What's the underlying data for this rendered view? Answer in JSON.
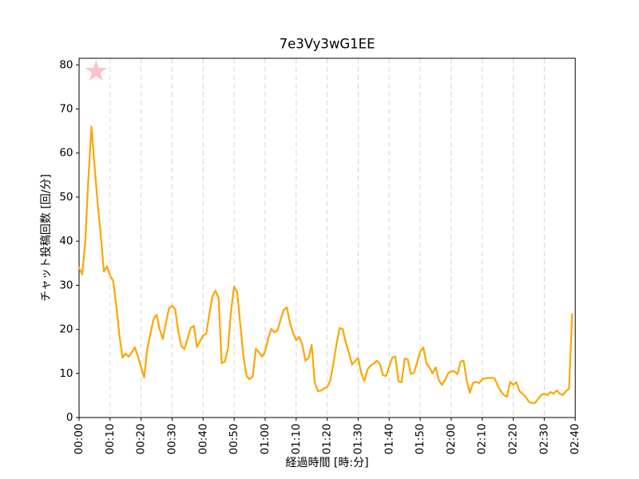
{
  "figure": {
    "background": "#ffffff"
  },
  "colors": {
    "line": "#FFA500",
    "star": "#FFC0CB",
    "grid": "#d6d6d6",
    "title_text": "#dcdcdc",
    "axis_text": "#000000",
    "spine": "#000000"
  },
  "chart_data": {
    "type": "line",
    "title": "7e3Vy3wG1EE",
    "xlabel": "経過時間 [時:分]",
    "ylabel": "チャット投稿回数 [回/分]",
    "x_unit": "minutes-elapsed",
    "x_start_minute": 0,
    "x_step_minutes": 1,
    "xlim_minutes": [
      0,
      160
    ],
    "ylim": [
      0,
      81.5
    ],
    "grid": "vertical-dashed-only",
    "legend_position": "none",
    "x_tick_minutes": [
      0,
      10,
      20,
      30,
      40,
      50,
      60,
      70,
      80,
      90,
      100,
      110,
      120,
      130,
      140,
      150,
      160
    ],
    "x_tick_labels": [
      "00:00",
      "00:10",
      "00:20",
      "00:30",
      "00:40",
      "00:50",
      "01:00",
      "01:10",
      "01:20",
      "01:30",
      "01:40",
      "01:50",
      "02:00",
      "02:10",
      "02:20",
      "02:30",
      "02:40"
    ],
    "y_ticks": [
      0,
      10,
      20,
      30,
      40,
      50,
      60,
      70,
      80
    ],
    "series": [
      {
        "name": "chat-posts-per-minute",
        "color": "#FFA500",
        "values": [
          34,
          32.5,
          40,
          54,
          66,
          57,
          48.5,
          41.3,
          33.1,
          34.3,
          32.2,
          31,
          25.3,
          18.6,
          13.6,
          14.5,
          13.8,
          14.8,
          15.9,
          13.8,
          11.4,
          9.1,
          15.6,
          19,
          22.3,
          23.3,
          20,
          17.8,
          21.4,
          24.8,
          25.4,
          24.5,
          19.5,
          16.2,
          15.5,
          18,
          20.3,
          20.8,
          16,
          17.3,
          18.6,
          19,
          23.5,
          27.5,
          28.8,
          27.1,
          12.3,
          12.7,
          15.6,
          24.1,
          29.7,
          28.4,
          21,
          13.8,
          9.4,
          8.7,
          9.3,
          15.6,
          14.8,
          13.8,
          15,
          18,
          20.1,
          19.3,
          19.8,
          22.3,
          24.4,
          25,
          21.5,
          19.2,
          17.5,
          18.3,
          16.5,
          12.9,
          13.5,
          16.5,
          7.8,
          6,
          6.1,
          6.6,
          6.9,
          8.4,
          12.3,
          16.5,
          20.3,
          20.1,
          17,
          14.7,
          12,
          12.8,
          13.5,
          10,
          8.3,
          10.9,
          11.8,
          12.2,
          12.9,
          12.2,
          9.6,
          9.4,
          11.6,
          13.6,
          13.8,
          8.2,
          8,
          13.4,
          13.2,
          9.9,
          10.2,
          12.5,
          15,
          15.9,
          12.3,
          11.4,
          10,
          11.4,
          8.5,
          7.4,
          8.5,
          10,
          10.5,
          10.5,
          9.8,
          12.7,
          12.9,
          8.5,
          5.6,
          7.8,
          8.1,
          7.8,
          8.7,
          8.9,
          9,
          9,
          8.9,
          7.2,
          6,
          5.1,
          4.7,
          8.1,
          7.4,
          8,
          6,
          5.4,
          4.7,
          3.6,
          3.3,
          3.3,
          4.2,
          5.1,
          5.4,
          5.1,
          5.8,
          5.4,
          6.2,
          5.4,
          5.1,
          6,
          6.5,
          23.5
        ]
      }
    ],
    "annotations": [
      {
        "type": "star-marker",
        "x_minutes": 5.5,
        "y": 78.5,
        "color": "#FFC0CB"
      }
    ]
  }
}
